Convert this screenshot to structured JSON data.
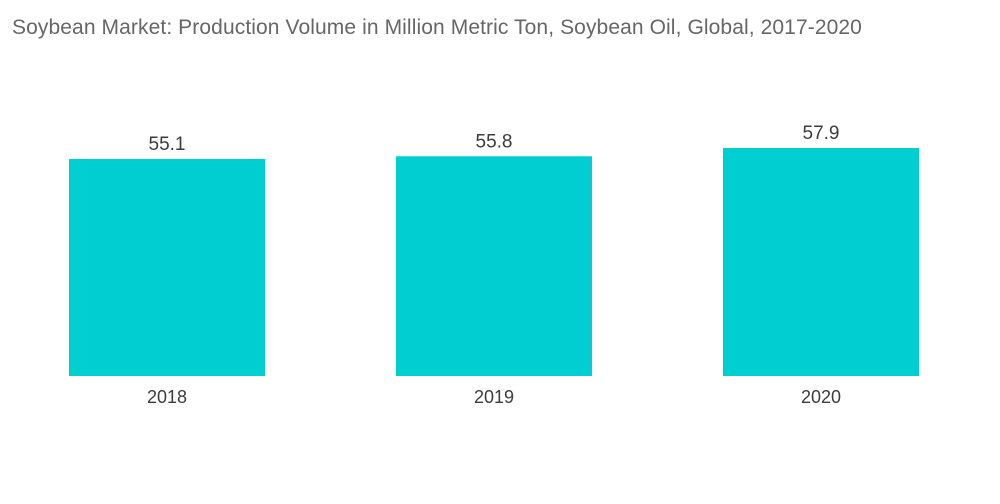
{
  "chart_data": {
    "type": "bar",
    "title": "Soybean Market: Production Volume in Million Metric Ton, Soybean Oil, Global, 2017-2020",
    "categories": [
      "2018",
      "2019",
      "2020"
    ],
    "values": [
      55.1,
      55.8,
      57.9
    ],
    "value_labels": [
      "55.1",
      "55.8",
      "57.9"
    ],
    "xlabel": "",
    "ylabel": "",
    "ylim": [
      0,
      57.9
    ],
    "grid": false,
    "legend": "none",
    "colors": {
      "bar": "#00ced1",
      "text": "#3c3c3c",
      "title": "#666666"
    }
  }
}
